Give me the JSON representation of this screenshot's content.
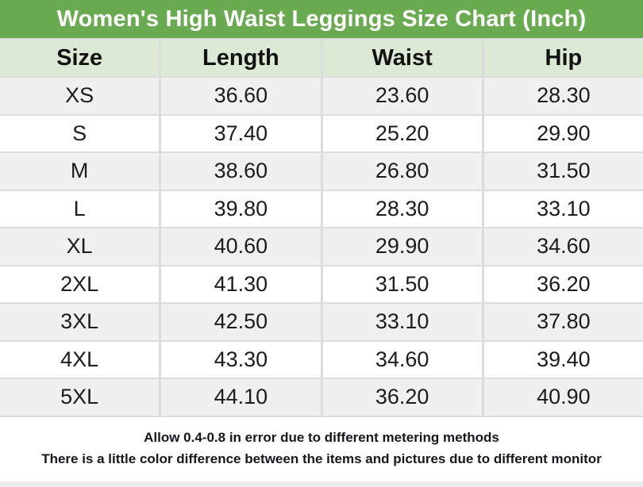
{
  "title": "Women's High Waist Leggings Size Chart (Inch)",
  "table": {
    "columns": [
      "Size",
      "Length",
      "Waist",
      "Hip"
    ],
    "rows": [
      [
        "XS",
        "36.60",
        "23.60",
        "28.30"
      ],
      [
        "S",
        "37.40",
        "25.20",
        "29.90"
      ],
      [
        "M",
        "38.60",
        "26.80",
        "31.50"
      ],
      [
        "L",
        "39.80",
        "28.30",
        "33.10"
      ],
      [
        "XL",
        "40.60",
        "29.90",
        "34.60"
      ],
      [
        "2XL",
        "41.30",
        "31.50",
        "36.20"
      ],
      [
        "3XL",
        "42.50",
        "33.10",
        "37.80"
      ],
      [
        "4XL",
        "43.30",
        "34.60",
        "39.40"
      ],
      [
        "5XL",
        "44.10",
        "36.20",
        "40.90"
      ]
    ]
  },
  "footer": {
    "line1": "Allow 0.4-0.8 in error due to different metering methods",
    "line2": "There is a little color difference between the items and pictures due to different monitor"
  },
  "colors": {
    "title_bg": "#6aaa50",
    "header_bg": "#dcead5",
    "row_alt_bg": "#f0f0f0",
    "row_bg": "#ffffff",
    "grid_line": "#dcdcdc",
    "title_text": "#ffffff",
    "cell_text": "#1c1c1c",
    "footer_text": "#16161e"
  },
  "chart_data": {
    "type": "table",
    "title": "Women's High Waist Leggings Size Chart (Inch)",
    "unit": "inch",
    "columns": [
      "Size",
      "Length",
      "Waist",
      "Hip"
    ],
    "rows": [
      {
        "size": "XS",
        "length": 36.6,
        "waist": 23.6,
        "hip": 28.3
      },
      {
        "size": "S",
        "length": 37.4,
        "waist": 25.2,
        "hip": 29.9
      },
      {
        "size": "M",
        "length": 38.6,
        "waist": 26.8,
        "hip": 31.5
      },
      {
        "size": "L",
        "length": 39.8,
        "waist": 28.3,
        "hip": 33.1
      },
      {
        "size": "XL",
        "length": 40.6,
        "waist": 29.9,
        "hip": 34.6
      },
      {
        "size": "2XL",
        "length": 41.3,
        "waist": 31.5,
        "hip": 36.2
      },
      {
        "size": "3XL",
        "length": 42.5,
        "waist": 33.1,
        "hip": 37.8
      },
      {
        "size": "4XL",
        "length": 43.3,
        "waist": 34.6,
        "hip": 39.4
      },
      {
        "size": "5XL",
        "length": 44.1,
        "waist": 36.2,
        "hip": 40.9
      }
    ],
    "notes": [
      "Allow 0.4-0.8 in error due to different metering methods",
      "There is a little color difference between the items and pictures due to different monitor"
    ]
  }
}
